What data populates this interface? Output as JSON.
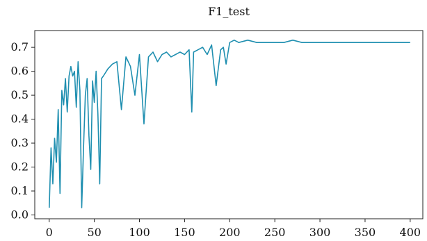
{
  "chart_data": {
    "type": "line",
    "title": "F1_test",
    "xlabel": "",
    "ylabel": "",
    "xlim": [
      -16,
      414
    ],
    "ylim": [
      -0.016,
      0.77
    ],
    "xticks": [
      0,
      50,
      100,
      150,
      200,
      250,
      300,
      350,
      400
    ],
    "yticks": [
      0.0,
      0.1,
      0.2,
      0.3,
      0.4,
      0.5,
      0.6,
      0.7
    ],
    "ytick_labels": [
      "0.0",
      "0.1",
      "0.2",
      "0.3",
      "0.4",
      "0.5",
      "0.6",
      "0.7"
    ],
    "xtick_labels": [
      "0",
      "50",
      "100",
      "150",
      "200",
      "250",
      "300",
      "350",
      "400"
    ],
    "grid": false,
    "series": [
      {
        "color": "#1f8fb0",
        "x": [
          0,
          2,
          4,
          6,
          8,
          10,
          12,
          14,
          16,
          18,
          20,
          22,
          24,
          26,
          28,
          30,
          32,
          34,
          36,
          38,
          40,
          42,
          44,
          46,
          48,
          50,
          52,
          54,
          56,
          58,
          60,
          65,
          70,
          75,
          80,
          85,
          90,
          95,
          100,
          105,
          110,
          115,
          120,
          125,
          130,
          135,
          140,
          145,
          150,
          155,
          158,
          160,
          165,
          170,
          175,
          180,
          185,
          190,
          193,
          196,
          200,
          205,
          210,
          220,
          230,
          240,
          250,
          260,
          270,
          280,
          290,
          300,
          310,
          320,
          330,
          340,
          350,
          360,
          370,
          380,
          390,
          400
        ],
        "values": [
          0.03,
          0.28,
          0.13,
          0.32,
          0.22,
          0.44,
          0.09,
          0.52,
          0.46,
          0.57,
          0.43,
          0.58,
          0.62,
          0.58,
          0.6,
          0.45,
          0.64,
          0.52,
          0.03,
          0.28,
          0.5,
          0.57,
          0.33,
          0.19,
          0.56,
          0.47,
          0.6,
          0.42,
          0.13,
          0.57,
          0.58,
          0.61,
          0.63,
          0.64,
          0.44,
          0.66,
          0.62,
          0.5,
          0.67,
          0.38,
          0.66,
          0.68,
          0.64,
          0.67,
          0.68,
          0.66,
          0.67,
          0.68,
          0.67,
          0.69,
          0.43,
          0.68,
          0.69,
          0.7,
          0.67,
          0.71,
          0.54,
          0.69,
          0.7,
          0.63,
          0.72,
          0.73,
          0.72,
          0.73,
          0.72,
          0.72,
          0.72,
          0.72,
          0.73,
          0.72,
          0.72,
          0.72,
          0.72,
          0.72,
          0.72,
          0.72,
          0.72,
          0.72,
          0.72,
          0.72,
          0.72,
          0.72
        ]
      }
    ]
  }
}
